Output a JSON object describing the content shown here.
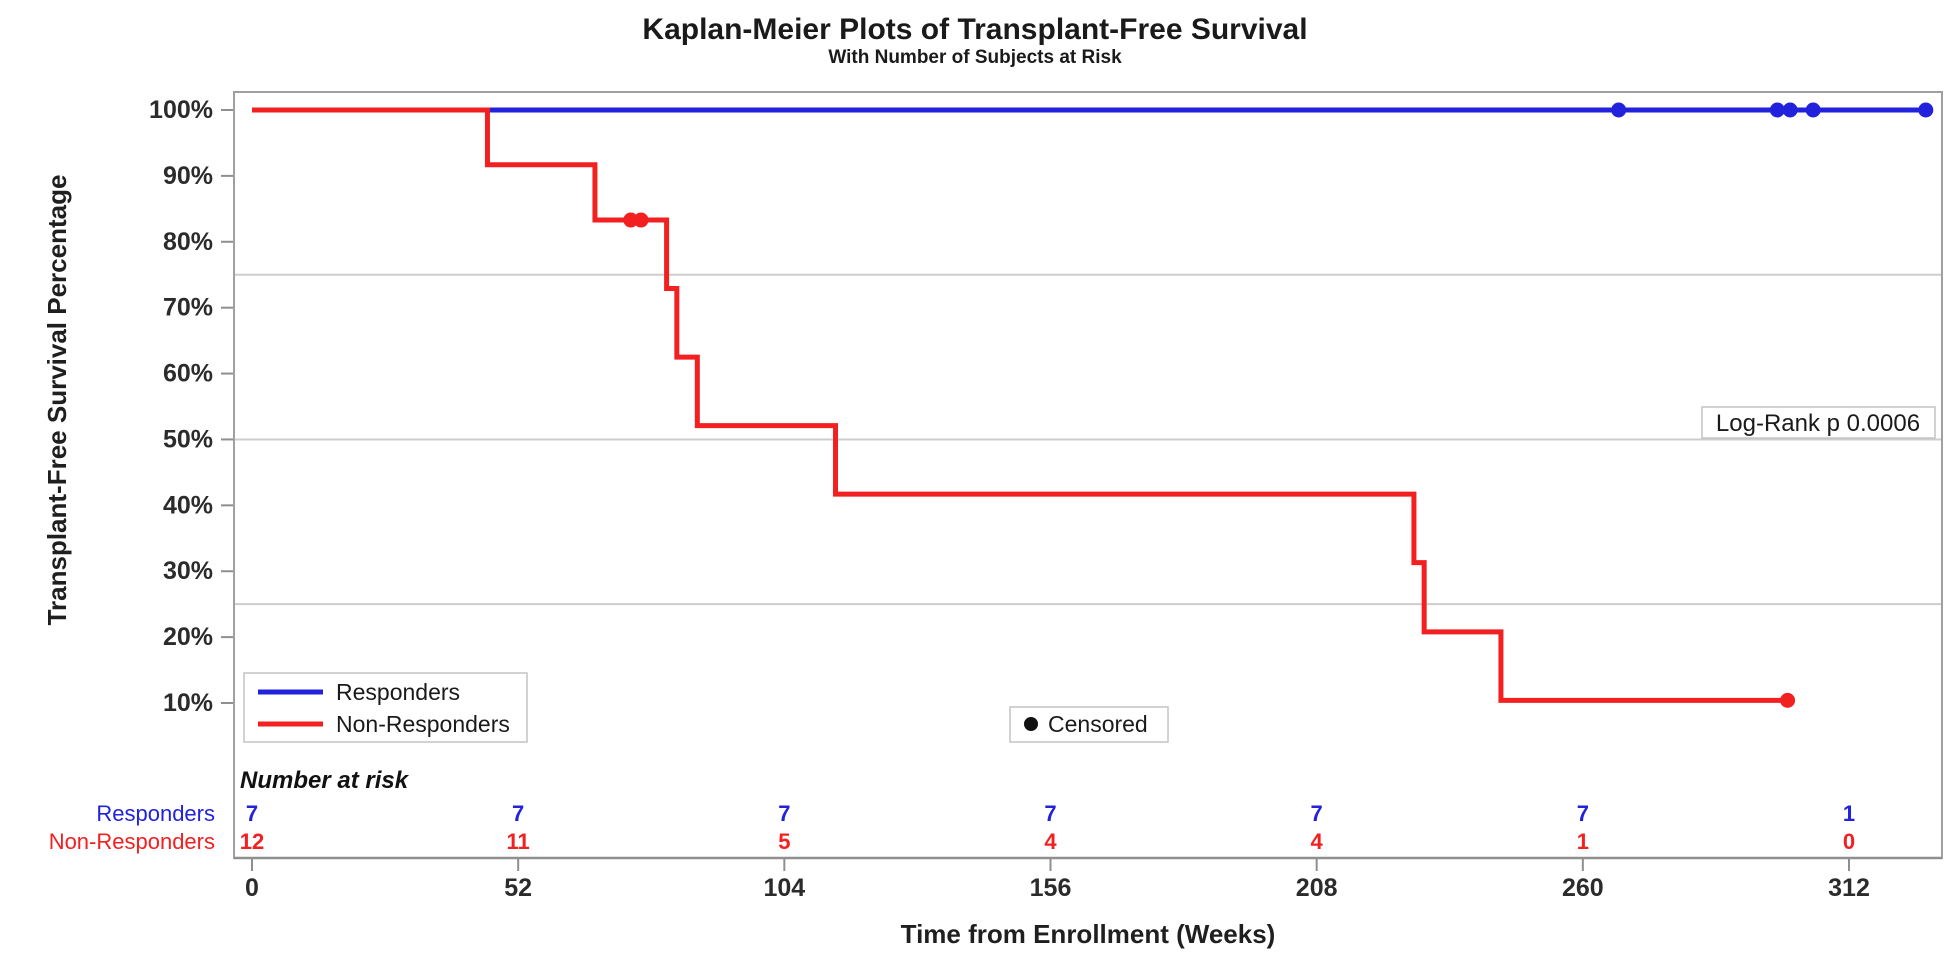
{
  "header": {
    "title": "Kaplan-Meier Plots of Transplant-Free Survival",
    "subtitle": "With Number of Subjects at Risk"
  },
  "colors": {
    "responders": "#2222dd",
    "non_responders": "#f22020",
    "censored_dot": "#111111",
    "grid": "#cdcdcd",
    "frame": "#a0a0a0"
  },
  "legend": {
    "responders_label": "Responders",
    "non_responders_label": "Non-Responders",
    "censored_label": "Censored"
  },
  "annotation": {
    "log_rank": "Log-Rank p 0.0006"
  },
  "risk_table": {
    "header": "Number at risk",
    "times": [
      0,
      52,
      104,
      156,
      208,
      260,
      312
    ],
    "rows": [
      {
        "name": "Responders",
        "color_key": "responders",
        "values": [
          "7",
          "7",
          "7",
          "7",
          "7",
          "7",
          "1"
        ]
      },
      {
        "name": "Non-Responders",
        "color_key": "non_responders",
        "values": [
          "12",
          "11",
          "5",
          "4",
          "4",
          "1",
          "0"
        ]
      }
    ]
  },
  "chart_data": {
    "type": "line",
    "subtype": "kaplan-meier-step",
    "title": "Kaplan-Meier Plots of Transplant-Free Survival",
    "subtitle": "With Number of Subjects at Risk",
    "xlabel": "Time from Enrollment (Weeks)",
    "ylabel": "Transplant-Free Survival Percentage",
    "x_ticks": [
      0,
      52,
      104,
      156,
      208,
      260,
      312
    ],
    "y_ticks_pct": [
      100,
      90,
      80,
      70,
      60,
      50,
      40,
      30,
      20,
      10
    ],
    "y_tick_suffix": "%",
    "gridlines_pct": [
      75,
      50,
      25
    ],
    "xlim": [
      0,
      330
    ],
    "ylim_pct": [
      0,
      100
    ],
    "legend_position": "inside bottom-left",
    "grid": "horizontal-only",
    "log_rank_p": "0.0006",
    "series": [
      {
        "name": "Responders",
        "color_key": "responders",
        "steps": [
          [
            0,
            100
          ],
          [
            328,
            100
          ]
        ],
        "censored": [
          [
            267,
            100
          ],
          [
            298,
            100
          ],
          [
            300.5,
            100
          ],
          [
            305,
            100
          ],
          [
            327,
            100
          ]
        ]
      },
      {
        "name": "Non-Responders",
        "color_key": "non_responders",
        "steps": [
          [
            0,
            100
          ],
          [
            46,
            91.7
          ],
          [
            67,
            83.3
          ],
          [
            81,
            72.9
          ],
          [
            83,
            62.5
          ],
          [
            87,
            52.1
          ],
          [
            114,
            41.7
          ],
          [
            227,
            31.3
          ],
          [
            229,
            20.8
          ],
          [
            244,
            10.4
          ],
          [
            300,
            10.4
          ]
        ],
        "censored": [
          [
            74,
            83.3
          ],
          [
            76,
            83.3
          ],
          [
            300,
            10.4
          ]
        ]
      }
    ]
  }
}
